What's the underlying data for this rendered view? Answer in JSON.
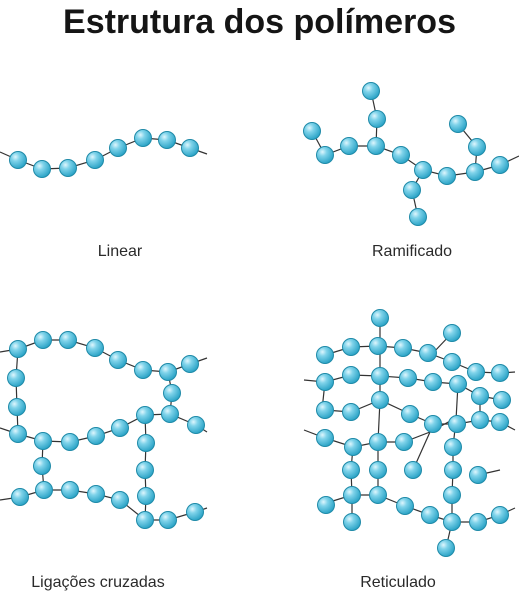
{
  "title": "Estrutura dos polímeros",
  "labels": {
    "linear": "Linear",
    "ramificado": "Ramificado",
    "ligacoes": "Ligações cruzadas",
    "reticulado": "Reticulado"
  },
  "colors": {
    "bead_fill": "#3fb7d6",
    "bead_stroke": "#1e8aa8",
    "bond": "#333333",
    "text": "#151515"
  }
}
